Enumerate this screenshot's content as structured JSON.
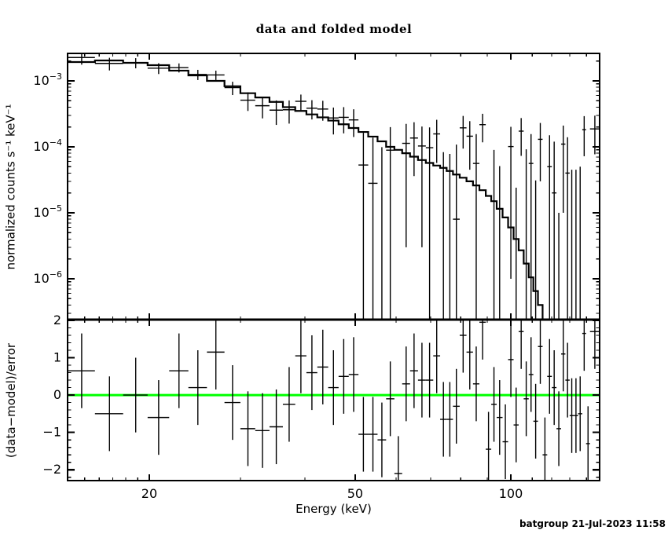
{
  "title": "data and folded model",
  "footer": "batgroup 21-Jul-2023 11:58",
  "colors": {
    "foreground": "#000000",
    "background": "#ffffff",
    "data": "#000000",
    "model": "#000000",
    "zero_line": "#00ff00"
  },
  "chart_data": {
    "type": "scatter",
    "description": "X-ray spectral fit (XSPEC-style): top panel shows count spectrum data crosses with a folded model step histogram on log-log axes; bottom panel shows (data-model)/error residuals with a green zero line.",
    "title": "data and folded model",
    "xlabel": "Energy (keV)",
    "xscale": "log",
    "xlim": [
      13.9,
      148.5
    ],
    "xticks": {
      "major": [
        20,
        50,
        100
      ],
      "major_labels": [
        "20",
        "50",
        "100"
      ],
      "minor": [
        15,
        16,
        17,
        18,
        19,
        30,
        40,
        60,
        70,
        80,
        90,
        110,
        120,
        130,
        140
      ]
    },
    "bin_edges_keV": [
      13.9,
      15.7,
      17.8,
      19.85,
      21.85,
      23.8,
      25.85,
      27.95,
      30.0,
      32.05,
      34.15,
      36.25,
      38.3,
      40.25,
      42.25,
      44.35,
      46.45,
      48.6,
      50.75,
      53.0,
      55.25,
      57.4,
      59.55,
      61.65,
      63.85,
      66.15,
      68.5,
      70.8,
      73.0,
      75.15,
      77.3,
      79.65,
      82.1,
      84.5,
      86.95,
      89.45,
      91.65,
      93.9,
      96.4,
      98.8,
      101.25,
      103.55,
      105.9,
      108.3,
      110.55,
      112.85,
      115.2,
      117.6,
      120.05,
      122.55,
      125.1,
      127.5,
      129.95,
      132.4,
      134.9,
      137.45,
      139.8,
      142.25,
      148.5
    ],
    "panels": [
      {
        "name": "spectrum",
        "ylabel": "normalized counts s⁻¹ keV⁻¹",
        "yscale": "log",
        "ylim": [
          2.4e-07,
          0.00261
        ],
        "yticks": {
          "major": [
            0.001,
            0.0001,
            1e-05,
            1e-06
          ],
          "major_exponents": [
            -3,
            -4,
            -5,
            -6
          ],
          "major_labels": [
            "10⁻³",
            "10⁻⁴",
            "10⁻⁵",
            "10⁻⁶"
          ]
        },
        "series": [
          {
            "name": "data",
            "style": "crosses-with-errorbars",
            "counts": [
              0.00226,
              0.00184,
              0.00188,
              0.00156,
              0.00159,
              0.00125,
              0.00123,
              0.00079,
              0.00051,
              0.00042,
              0.00036,
              0.000365,
              0.00049,
              0.000385,
              0.000374,
              0.000274,
              0.00028,
              0.000256,
              5.3e-05,
              2.8e-05,
              -1.1e-05,
              8.9e-05,
              -0.000141,
              0.000113,
              0.000136,
              0.000103,
              9.7e-05,
              0.000157,
              -1.7e-05,
              -2.2e-05,
              8e-06,
              0.000194,
              0.000145,
              5.6e-05,
              0.000217,
              -0.000127,
              -1e-05,
              -4.9e-05,
              -0.000117,
              0.000101,
              -7.6e-05,
              0.000173,
              -8.3e-06,
              5.6e-05,
              -6.9e-05,
              0.00013,
              -0.00016,
              5e-05,
              2e-05,
              -9e-05,
              0.00011,
              4e-05,
              -5.5e-05,
              -5.5e-05,
              -5e-05,
              0.000182,
              -0.000143,
              0.000187
            ],
            "errors": [
              0.0005,
              0.0004,
              0.00033,
              0.00029,
              0.00025,
              0.00022,
              0.0002,
              0.00018,
              0.00016,
              0.00015,
              0.000145,
              0.00014,
              0.00013,
              0.000125,
              0.000125,
              0.00012,
              0.00012,
              0.000115,
              0.00011,
              0.00011,
              0.00011,
              0.00011,
              0.00011,
              0.00011,
              0.0001,
              0.0001,
              0.0001,
              0.0001,
              0.0001,
              0.0001,
              0.0001,
              0.0001,
              0.0001,
              0.0001,
              0.0001,
              0.0001,
              0.0001,
              0.0001,
              0.0001,
              0.0001,
              0.0001,
              0.0001,
              0.0001,
              0.0001,
              0.0001,
              0.0001,
              0.0001,
              0.0001,
              0.0001,
              0.0001,
              0.0001,
              0.0001,
              0.0001,
              0.0001,
              0.0001,
              0.00011,
              0.00011,
              0.00011
            ]
          },
          {
            "name": "folded model",
            "style": "step-histogram",
            "values": [
              0.00193,
              0.00204,
              0.00188,
              0.00173,
              0.00143,
              0.00121,
              0.001,
              0.00083,
              0.00065,
              0.00056,
              0.00048,
              0.0004,
              0.00035,
              0.00031,
              0.00028,
              0.00025,
              0.00022,
              0.000193,
              0.000168,
              0.000143,
              0.000121,
              0.0001,
              9e-05,
              8e-05,
              7.1e-05,
              6.3e-05,
              5.7e-05,
              5.2e-05,
              4.8e-05,
              4.3e-05,
              3.8e-05,
              3.4e-05,
              3e-05,
              2.6e-05,
              2.2e-05,
              1.8e-05,
              1.5e-05,
              1.15e-05,
              8.5e-06,
              6e-06,
              4e-06,
              2.7e-06,
              1.7e-06,
              1.05e-06,
              6.5e-07,
              4e-07,
              2.4e-07,
              1.5e-07,
              9e-08,
              5.5e-08,
              3.3e-08,
              2e-08,
              1.2e-08,
              8e-09,
              5e-09,
              3e-09,
              2e-09,
              1.3e-09
            ]
          }
        ]
      },
      {
        "name": "residuals",
        "ylabel": "(data−model)/error",
        "yscale": "linear",
        "ylim": [
          -2.29,
          2.02
        ],
        "yticks": {
          "major": [
            2,
            1,
            0,
            -1,
            -2
          ],
          "major_labels": [
            "2",
            "1",
            "0",
            "−1",
            "−2"
          ],
          "minor_step": 0.2
        },
        "zero_line": {
          "y": 0,
          "color": "#00ff00"
        },
        "series": [
          {
            "name": "(data-model)/error",
            "style": "crosses-with-errorbars",
            "values": [
              0.65,
              -0.5,
              0.0,
              -0.6,
              0.65,
              0.2,
              1.15,
              -0.2,
              -0.9,
              -0.95,
              -0.85,
              -0.25,
              1.05,
              0.6,
              0.75,
              0.2,
              0.5,
              0.55,
              -1.05,
              -1.05,
              -1.2,
              -0.1,
              -2.1,
              0.3,
              0.65,
              0.4,
              0.4,
              1.05,
              -0.65,
              -0.65,
              -0.3,
              1.6,
              1.15,
              0.3,
              1.95,
              -1.45,
              -0.25,
              -0.6,
              -1.25,
              0.95,
              -0.8,
              1.7,
              -0.1,
              0.55,
              -0.7,
              1.3,
              -1.6,
              0.5,
              0.2,
              -0.9,
              1.1,
              0.4,
              -0.55,
              -0.55,
              -0.5,
              1.65,
              -1.3,
              1.7
            ],
            "error": 1.0
          }
        ]
      }
    ]
  }
}
